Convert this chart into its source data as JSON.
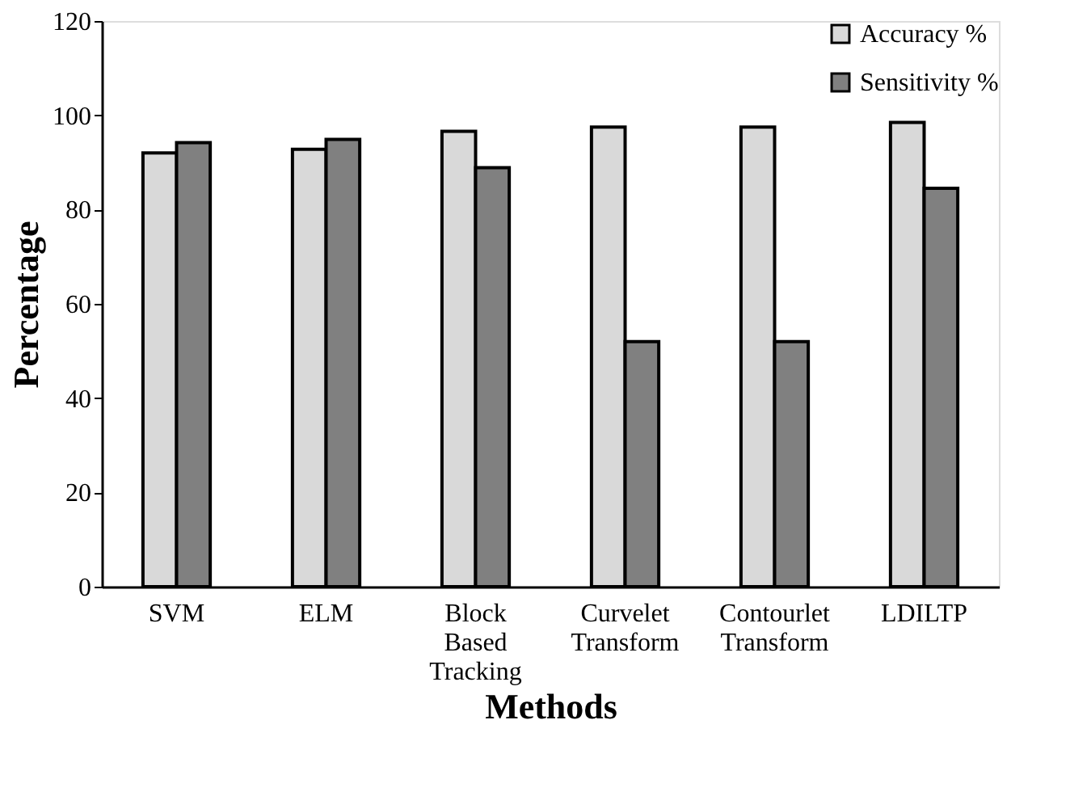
{
  "chart_data": {
    "type": "bar",
    "xlabel": "Methods",
    "ylabel": "Percentage",
    "categories": [
      "SVM",
      "ELM",
      "Block Based Tracking",
      "Curvelet Transform",
      "Contourlet Transform",
      "LDILTP"
    ],
    "series": [
      {
        "name": "Accuracy %",
        "color": "#d9d9d9",
        "values": [
          92.0,
          92.8,
          96.6,
          97.5,
          97.5,
          98.5
        ]
      },
      {
        "name": "Sensitivity %",
        "color": "#808080",
        "values": [
          94.2,
          94.9,
          88.9,
          52.0,
          52.0,
          84.5
        ]
      }
    ],
    "ylim": [
      0,
      120
    ],
    "yticks": [
      0,
      20,
      40,
      60,
      80,
      100,
      120
    ],
    "grid": false,
    "legend": "top right"
  }
}
